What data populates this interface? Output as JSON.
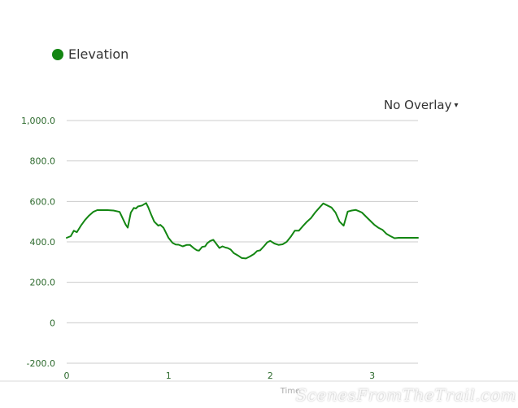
{
  "legend": {
    "label": "Elevation",
    "color": "#138612"
  },
  "overlay": {
    "label": "No Overlay",
    "caret": "▾"
  },
  "watermark": "ScenesFromTheTrail.com",
  "chart_data": {
    "type": "line",
    "title": "",
    "xlabel": "Time",
    "ylabel": "",
    "xlim": [
      0,
      3.45
    ],
    "ylim": [
      -200,
      1000
    ],
    "yticks": [
      -200,
      0,
      200,
      400,
      600,
      800,
      1000
    ],
    "ytick_labels": [
      "-200.0",
      "0",
      "200.0",
      "400.0",
      "600.0",
      "800.0",
      "1,000.0"
    ],
    "xticks": [
      0,
      1,
      2,
      3
    ],
    "xtick_labels": [
      "0",
      "1",
      "2",
      "3"
    ],
    "grid": true,
    "legend_position": "top-left",
    "series": [
      {
        "name": "Elevation",
        "color": "#138612",
        "x": [
          0,
          0.04,
          0.07,
          0.1,
          0.14,
          0.18,
          0.22,
          0.26,
          0.3,
          0.34,
          0.4,
          0.46,
          0.52,
          0.58,
          0.6,
          0.63,
          0.66,
          0.68,
          0.7,
          0.74,
          0.78,
          0.8,
          0.83,
          0.86,
          0.9,
          0.92,
          0.95,
          1.0,
          1.04,
          1.07,
          1.1,
          1.14,
          1.18,
          1.21,
          1.25,
          1.28,
          1.3,
          1.33,
          1.36,
          1.38,
          1.41,
          1.44,
          1.47,
          1.5,
          1.53,
          1.56,
          1.58,
          1.61,
          1.64,
          1.68,
          1.72,
          1.76,
          1.8,
          1.84,
          1.87,
          1.9,
          1.94,
          1.97,
          2.0,
          2.04,
          2.08,
          2.12,
          2.16,
          2.2,
          2.24,
          2.28,
          2.32,
          2.36,
          2.4,
          2.44,
          2.48,
          2.52,
          2.56,
          2.6,
          2.64,
          2.68,
          2.72,
          2.76,
          2.8,
          2.84,
          2.87,
          2.9,
          2.94,
          2.98,
          3.02,
          3.06,
          3.1,
          3.14,
          3.18,
          3.22,
          3.26,
          3.3,
          3.35,
          3.4,
          3.45
        ],
        "values": [
          420,
          428,
          455,
          448,
          480,
          508,
          530,
          548,
          557,
          557,
          557,
          555,
          548,
          485,
          470,
          545,
          568,
          565,
          575,
          580,
          592,
          572,
          535,
          500,
          480,
          484,
          470,
          420,
          395,
          387,
          386,
          378,
          385,
          385,
          368,
          358,
          357,
          375,
          378,
          393,
          405,
          410,
          390,
          370,
          378,
          372,
          370,
          362,
          345,
          333,
          320,
          318,
          328,
          340,
          355,
          358,
          380,
          398,
          405,
          392,
          385,
          388,
          400,
          425,
          455,
          455,
          478,
          500,
          518,
          545,
          568,
          590,
          580,
          570,
          545,
          500,
          480,
          550,
          555,
          558,
          552,
          545,
          525,
          505,
          485,
          470,
          460,
          440,
          428,
          418,
          420,
          420,
          420,
          420,
          420
        ]
      }
    ]
  }
}
